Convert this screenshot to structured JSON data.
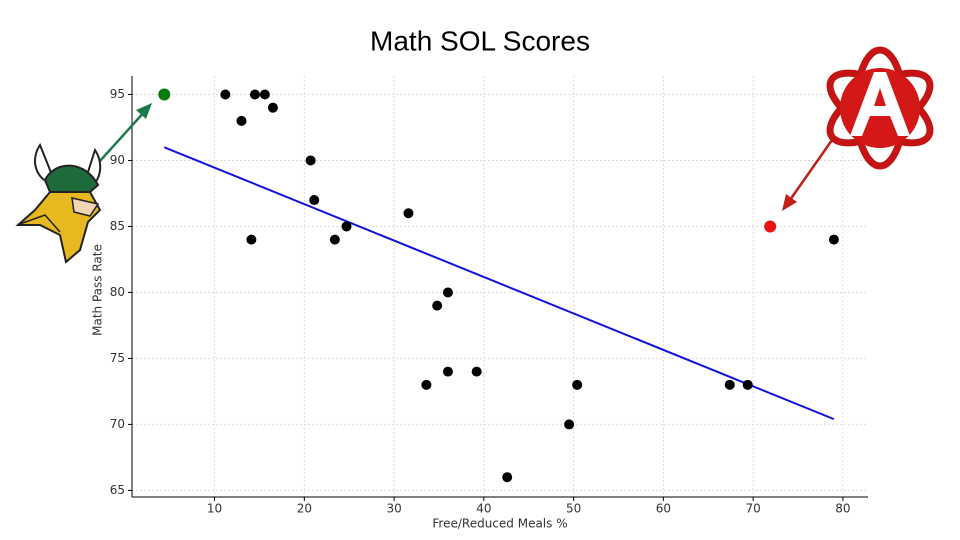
{
  "chart_data": {
    "type": "scatter",
    "title": "Math SOL Scores",
    "xlabel": "Free/Reduced Meals %",
    "ylabel": "Math Pass Rate",
    "xlim": [
      0.8,
      82.8
    ],
    "ylim": [
      64.5,
      96.4
    ],
    "xticks": [
      10,
      20,
      30,
      40,
      50,
      60,
      70,
      80
    ],
    "yticks": [
      65,
      70,
      75,
      80,
      85,
      90,
      95
    ],
    "grid": true,
    "series": [
      {
        "color": "#000000",
        "x": [
          11.2,
          13.0,
          14.5,
          15.6,
          16.5,
          20.7,
          21.1,
          14.1,
          23.4,
          24.7,
          31.6,
          36.0,
          34.8,
          33.6,
          36.0,
          39.2,
          50.4,
          49.5,
          42.6,
          67.4,
          69.4,
          79.0
        ],
        "values": [
          95,
          93,
          95,
          95,
          94,
          90,
          87,
          84,
          84,
          85,
          86,
          80,
          79,
          73,
          74,
          74,
          73,
          70,
          66,
          73,
          73,
          84
        ]
      },
      {
        "color": "#0a7a0a",
        "x": [
          4.4
        ],
        "values": [
          95
        ]
      },
      {
        "color": "#ee1111",
        "x": [
          71.9
        ],
        "values": [
          85
        ]
      }
    ],
    "trend_line": {
      "color": "#1111dd",
      "x": [
        4.4,
        79.0
      ],
      "values": [
        91.0,
        70.4
      ]
    }
  }
}
